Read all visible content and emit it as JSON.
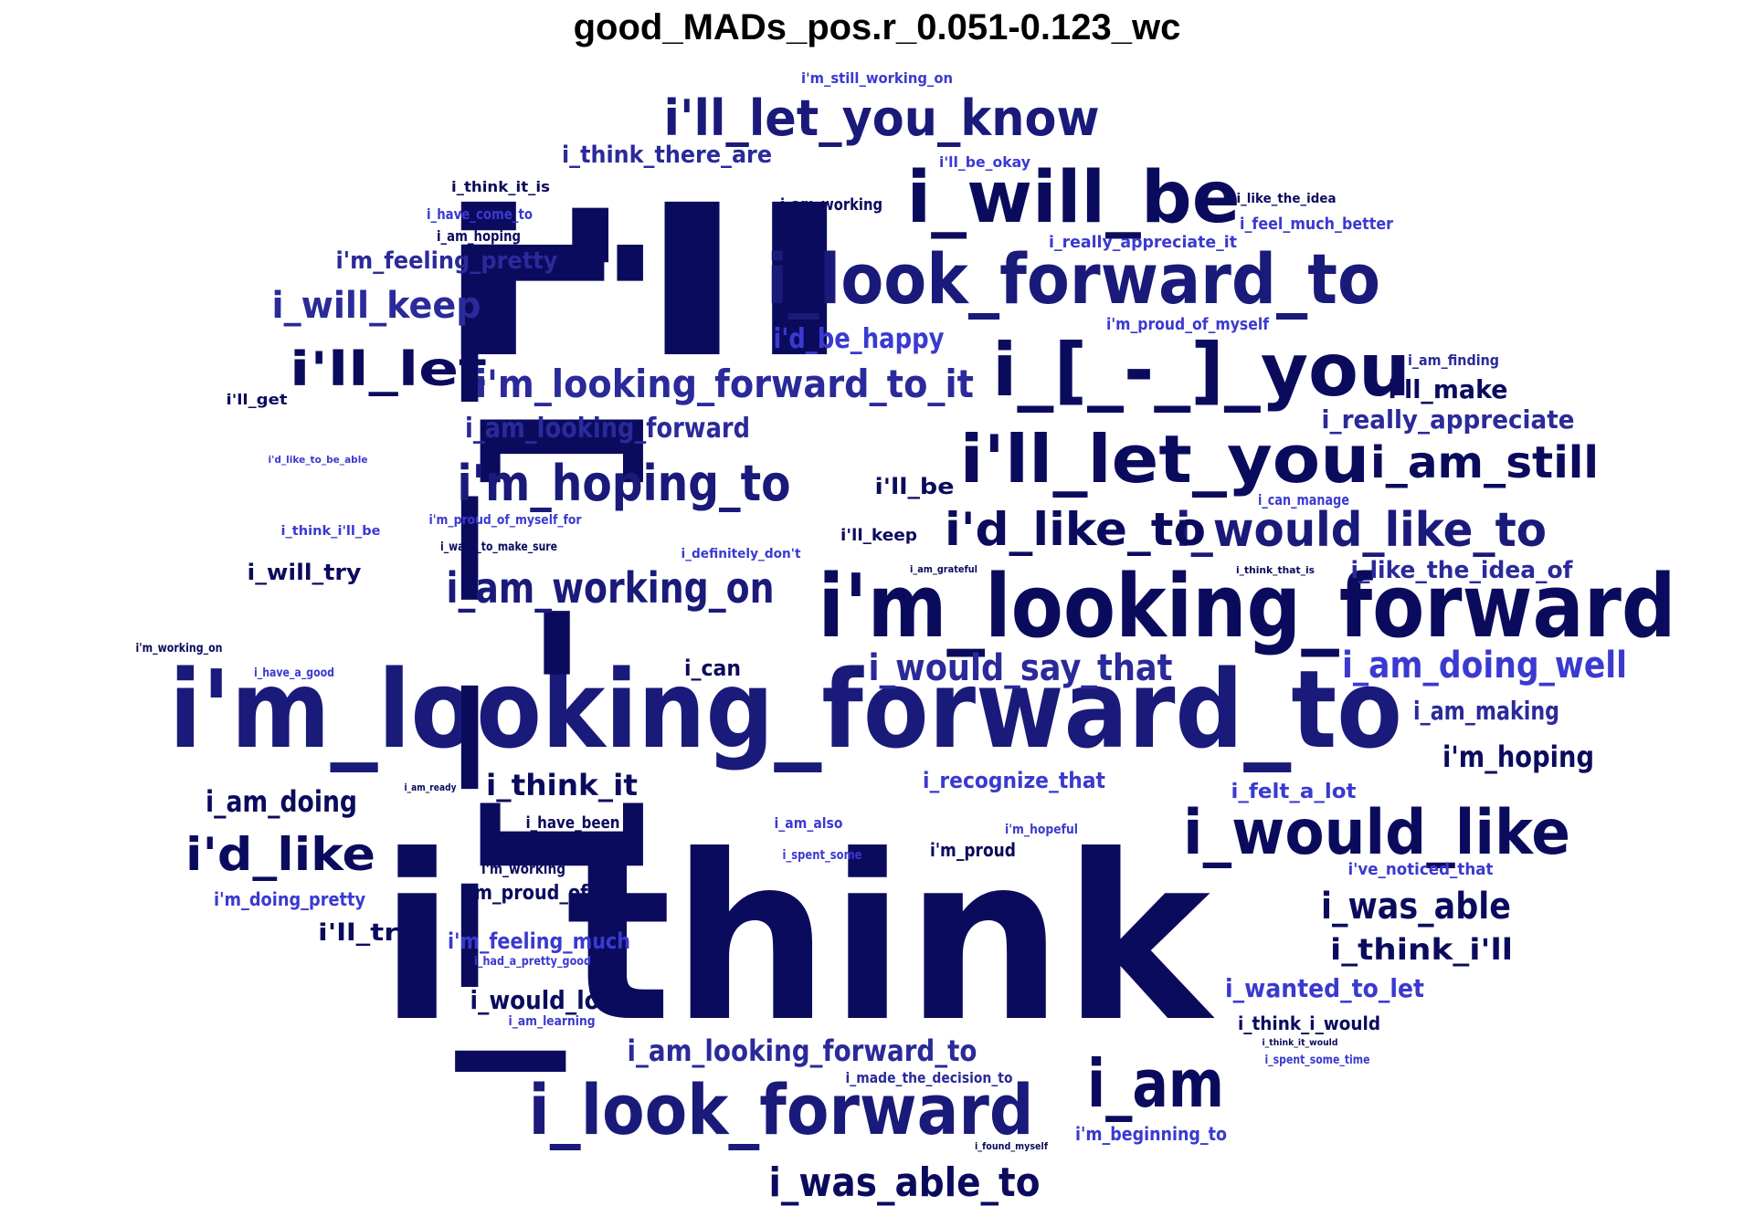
{
  "chart_data": {
    "type": "wordcloud",
    "title": "good_MADs_pos.r_0.051-0.123_wc",
    "colors": [
      "#0b0b5e",
      "#1a1a7a",
      "#2a2a9a",
      "#3a3ad0"
    ],
    "words": [
      {
        "text": "i_think",
        "weight": 100
      },
      {
        "text": "i'm_looking_forward_to",
        "weight": 55
      },
      {
        "text": "i'll",
        "weight": 58
      },
      {
        "text": "i_[_-_]_",
        "weight": 48
      },
      {
        "text": "i'm_looking_forward",
        "weight": 36
      },
      {
        "text": "i_[_-_]_you",
        "weight": 30
      },
      {
        "text": "i_look_forward_to",
        "weight": 27
      },
      {
        "text": "i_will_be",
        "weight": 27
      },
      {
        "text": "i_look_forward",
        "weight": 27
      },
      {
        "text": "i'll_let_you",
        "weight": 26
      },
      {
        "text": "i_am",
        "weight": 25
      },
      {
        "text": "i_would_like",
        "weight": 24
      },
      {
        "text": "i'll_let_you_know",
        "weight": 20
      },
      {
        "text": "i'm_hoping_to",
        "weight": 19
      },
      {
        "text": "i_would_like_to",
        "weight": 19
      },
      {
        "text": "i'd_like_to",
        "weight": 18
      },
      {
        "text": "i_am_still",
        "weight": 17
      },
      {
        "text": "i'll_let",
        "weight": 17
      },
      {
        "text": "i'd_like",
        "weight": 17
      },
      {
        "text": "i_am_working_on",
        "weight": 16
      },
      {
        "text": "i'm_looking_forward_to_it",
        "weight": 15
      },
      {
        "text": "i_was_able_to",
        "weight": 15
      },
      {
        "text": "i_would_say_that",
        "weight": 14
      },
      {
        "text": "i_am_doing_well",
        "weight": 14
      },
      {
        "text": "i_was_able",
        "weight": 14
      },
      {
        "text": "i_will_keep",
        "weight": 13
      },
      {
        "text": "i_am_looking_forward_to",
        "weight": 12
      },
      {
        "text": "i_am_looking_forward",
        "weight": 11
      },
      {
        "text": "i'd_be_happy",
        "weight": 11
      },
      {
        "text": "i'm_hoping",
        "weight": 11
      },
      {
        "text": "i_think_i'll",
        "weight": 11
      },
      {
        "text": "i_am_doing",
        "weight": 11
      },
      {
        "text": "i_think_it",
        "weight": 11
      },
      {
        "text": "i_would_love",
        "weight": 10
      },
      {
        "text": "i_think_there_are",
        "weight": 10
      },
      {
        "text": "i'm_feeling_pretty",
        "weight": 10
      },
      {
        "text": "i_am_making",
        "weight": 10
      },
      {
        "text": "i_really_appreciate",
        "weight": 10
      },
      {
        "text": "i'll_make",
        "weight": 10
      },
      {
        "text": "i_like_the_idea_of",
        "weight": 10
      },
      {
        "text": "i_wanted_to_let",
        "weight": 10
      },
      {
        "text": "i'm_feeling_much",
        "weight": 9
      },
      {
        "text": "i'll_try",
        "weight": 9
      },
      {
        "text": "i_recognize_that",
        "weight": 9
      },
      {
        "text": "i_will_try",
        "weight": 9
      },
      {
        "text": "i'm_proud_of",
        "weight": 9
      },
      {
        "text": "i'll_be",
        "weight": 9
      },
      {
        "text": "i_can",
        "weight": 9
      },
      {
        "text": "i_felt_a_lot",
        "weight": 8
      },
      {
        "text": "i'm_proud",
        "weight": 8
      },
      {
        "text": "i'm_beginning_to",
        "weight": 8
      },
      {
        "text": "i_think_i_would",
        "weight": 8
      },
      {
        "text": "i_am_working",
        "weight": 7
      },
      {
        "text": "i'm_proud_of_myself",
        "weight": 7
      },
      {
        "text": "i'm_doing_pretty",
        "weight": 7
      },
      {
        "text": "i_feel_much_better",
        "weight": 7
      },
      {
        "text": "i_really_appreciate_it",
        "weight": 7
      },
      {
        "text": "i'll_keep",
        "weight": 7
      },
      {
        "text": "i'm_still_working_on",
        "weight": 6
      },
      {
        "text": "i_am_hoping",
        "weight": 6
      },
      {
        "text": "i_think_it_is",
        "weight": 6
      },
      {
        "text": "i_have_come_to",
        "weight": 6
      },
      {
        "text": "i'll_be_okay",
        "weight": 6
      },
      {
        "text": "i_am_finding",
        "weight": 6
      },
      {
        "text": "i_can_manage",
        "weight": 6
      },
      {
        "text": "i_have_been",
        "weight": 6
      },
      {
        "text": "i_am_also",
        "weight": 6
      },
      {
        "text": "i'm_working",
        "weight": 6
      },
      {
        "text": "i_made_the_decision_to",
        "weight": 6
      },
      {
        "text": "i've_noticed_that",
        "weight": 6
      },
      {
        "text": "i'm_hopeful",
        "weight": 5
      },
      {
        "text": "i_spent_some",
        "weight": 5
      },
      {
        "text": "i_like_the_idea",
        "weight": 5
      },
      {
        "text": "i'll_get",
        "weight": 5
      },
      {
        "text": "i_think_i'll_be",
        "weight": 5
      },
      {
        "text": "i'm_proud_of_myself_for",
        "weight": 5
      },
      {
        "text": "i_definitely_don't",
        "weight": 5
      },
      {
        "text": "i_want_to_make_sure",
        "weight": 4
      },
      {
        "text": "i'm_working_on",
        "weight": 4
      },
      {
        "text": "i_have_a_good",
        "weight": 4
      },
      {
        "text": "i_am_learning",
        "weight": 4
      },
      {
        "text": "i_had_a_pretty_good",
        "weight": 4
      },
      {
        "text": "i_spent_some_time",
        "weight": 4
      },
      {
        "text": "i'd_like_to_be_able",
        "weight": 4
      },
      {
        "text": "i_am_grateful",
        "weight": 4
      },
      {
        "text": "i_think_that_is",
        "weight": 4
      },
      {
        "text": "i_am_ready",
        "weight": 4
      },
      {
        "text": "i_think_it_would",
        "weight": 4
      },
      {
        "text": "i_found_myself",
        "weight": 4
      }
    ]
  }
}
